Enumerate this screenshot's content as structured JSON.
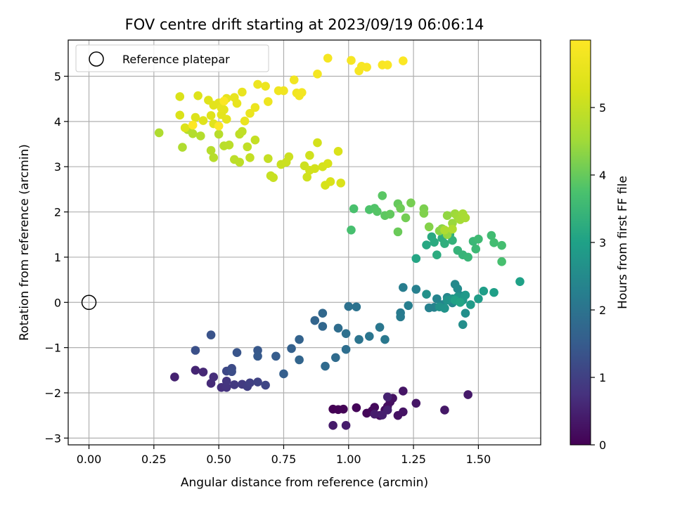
{
  "chart_data": {
    "type": "scatter",
    "title": "FOV centre drift starting at 2023/09/19 06:06:14",
    "xlabel": "Angular distance from reference (arcmin)",
    "ylabel": "Rotation from reference (arcmin)",
    "xlim": [
      -0.08,
      1.74
    ],
    "ylim": [
      -3.15,
      5.8
    ],
    "x_ticks": [
      "0.00",
      "0.25",
      "0.50",
      "0.75",
      "1.00",
      "1.25",
      "1.50"
    ],
    "y_ticks": [
      "−3",
      "−2",
      "−1",
      "0",
      "1",
      "2",
      "3",
      "4",
      "5"
    ],
    "grid": true,
    "legend": {
      "placement": "top-left",
      "entries": [
        "Reference platepar"
      ]
    },
    "reference_point": {
      "x": 0.0,
      "y": 0.0
    },
    "colorbar": {
      "label": "Hours from first FF file",
      "colormap": "viridis",
      "range": [
        0,
        6
      ],
      "ticks": [
        "0",
        "1",
        "2",
        "3",
        "4",
        "5"
      ]
    },
    "series": [
      {
        "hours_range": [
          0.0,
          0.5
        ],
        "points": [
          [
            0.94,
            -2.36
          ],
          [
            0.96,
            -2.37
          ],
          [
            0.98,
            -2.36
          ],
          [
            1.03,
            -2.33
          ],
          [
            1.07,
            -2.45
          ],
          [
            1.09,
            -2.4
          ],
          [
            1.1,
            -2.32
          ],
          [
            1.12,
            -2.5
          ],
          [
            1.14,
            -2.38
          ],
          [
            1.15,
            -2.3
          ],
          [
            1.16,
            -2.2
          ],
          [
            1.17,
            -2.12
          ],
          [
            1.19,
            -2.5
          ],
          [
            1.21,
            -2.42
          ],
          [
            1.21,
            -1.96
          ],
          [
            1.26,
            -2.23
          ],
          [
            1.37,
            -2.38
          ],
          [
            1.46,
            -2.04
          ],
          [
            0.94,
            -2.72
          ],
          [
            0.99,
            -2.72
          ],
          [
            1.1,
            -2.47
          ],
          [
            1.13,
            -2.49
          ],
          [
            1.15,
            -2.38
          ],
          [
            1.15,
            -2.09
          ]
        ]
      },
      {
        "hours_range": [
          0.5,
          1.7
        ],
        "points": [
          [
            0.33,
            -1.65
          ],
          [
            0.41,
            -1.5
          ],
          [
            0.44,
            -1.54
          ],
          [
            0.47,
            -1.79
          ],
          [
            0.48,
            -1.65
          ],
          [
            0.51,
            -1.88
          ],
          [
            0.53,
            -1.88
          ],
          [
            0.53,
            -1.74
          ],
          [
            0.56,
            -1.82
          ],
          [
            0.59,
            -1.81
          ],
          [
            0.61,
            -1.86
          ],
          [
            0.62,
            -1.78
          ],
          [
            0.65,
            -1.76
          ],
          [
            0.68,
            -1.83
          ],
          [
            0.53,
            -1.52
          ],
          [
            0.55,
            -1.46
          ],
          [
            0.55,
            -1.53
          ],
          [
            0.41,
            -1.06
          ],
          [
            0.47,
            -0.72
          ],
          [
            0.57,
            -1.11
          ],
          [
            0.65,
            -1.06
          ],
          [
            0.65,
            -1.19
          ],
          [
            0.72,
            -1.19
          ],
          [
            0.75,
            -1.58
          ],
          [
            0.78,
            -1.02
          ],
          [
            0.81,
            -0.82
          ],
          [
            0.81,
            -1.27
          ]
        ]
      },
      {
        "hours_range": [
          1.7,
          2.7
        ],
        "points": [
          [
            0.87,
            -0.4
          ],
          [
            0.9,
            -0.53
          ],
          [
            0.9,
            -0.24
          ],
          [
            0.91,
            -1.41
          ],
          [
            0.95,
            -1.22
          ],
          [
            0.96,
            -0.57
          ],
          [
            0.99,
            -1.04
          ],
          [
            0.99,
            -0.69
          ],
          [
            1.0,
            -0.09
          ],
          [
            1.03,
            -0.1
          ],
          [
            1.04,
            -0.82
          ],
          [
            1.08,
            -0.75
          ],
          [
            1.12,
            -0.55
          ],
          [
            1.14,
            -0.82
          ],
          [
            1.2,
            -0.23
          ],
          [
            1.2,
            -0.32
          ],
          [
            1.21,
            0.33
          ],
          [
            1.23,
            -0.07
          ],
          [
            1.26,
            0.29
          ],
          [
            1.31,
            -0.12
          ],
          [
            1.33,
            -0.11
          ],
          [
            1.34,
            0.08
          ],
          [
            1.36,
            -0.05
          ],
          [
            1.38,
            0.11
          ],
          [
            1.4,
            -0.01
          ],
          [
            1.41,
            0.4
          ],
          [
            1.42,
            0.3
          ],
          [
            1.43,
            0.15
          ],
          [
            1.44,
            -0.49
          ],
          [
            1.45,
            -0.24
          ],
          [
            1.3,
            0.18
          ],
          [
            1.35,
            -0.1
          ],
          [
            1.37,
            -0.13
          ]
        ]
      },
      {
        "hours_range": [
          2.7,
          3.7
        ],
        "points": [
          [
            1.38,
            0.05
          ],
          [
            1.4,
            0.08
          ],
          [
            1.42,
            0.12
          ],
          [
            1.44,
            0.05
          ],
          [
            1.45,
            0.16
          ],
          [
            1.47,
            -0.05
          ],
          [
            1.5,
            0.08
          ],
          [
            1.52,
            0.25
          ],
          [
            1.56,
            0.22
          ],
          [
            1.66,
            0.46
          ],
          [
            1.41,
            0.05
          ],
          [
            1.43,
            0.0
          ],
          [
            1.26,
            0.97
          ],
          [
            1.3,
            1.27
          ],
          [
            1.32,
            1.45
          ],
          [
            1.33,
            1.33
          ],
          [
            1.34,
            1.05
          ],
          [
            1.36,
            1.42
          ],
          [
            1.37,
            1.3
          ],
          [
            1.39,
            1.5
          ],
          [
            1.4,
            1.37
          ],
          [
            1.42,
            1.15
          ],
          [
            1.44,
            1.05
          ],
          [
            1.46,
            1.0
          ],
          [
            1.48,
            1.35
          ],
          [
            1.49,
            1.18
          ],
          [
            1.5,
            1.4
          ],
          [
            1.55,
            1.48
          ],
          [
            1.56,
            1.32
          ],
          [
            1.59,
            1.26
          ],
          [
            1.59,
            0.9
          ]
        ]
      },
      {
        "hours_range": [
          3.7,
          4.7
        ],
        "points": [
          [
            1.01,
            1.6
          ],
          [
            1.02,
            2.07
          ],
          [
            1.08,
            2.05
          ],
          [
            1.1,
            2.08
          ],
          [
            1.11,
            2.01
          ],
          [
            1.13,
            2.36
          ],
          [
            1.14,
            1.92
          ],
          [
            1.16,
            1.95
          ],
          [
            1.19,
            2.18
          ],
          [
            1.19,
            1.56
          ],
          [
            1.2,
            2.08
          ],
          [
            1.22,
            1.87
          ],
          [
            1.24,
            2.2
          ],
          [
            1.29,
            2.07
          ],
          [
            1.29,
            1.97
          ],
          [
            1.31,
            1.67
          ],
          [
            1.35,
            1.58
          ],
          [
            1.36,
            1.63
          ],
          [
            1.38,
            1.92
          ],
          [
            1.38,
            1.5
          ],
          [
            1.4,
            1.75
          ],
          [
            1.41,
            1.96
          ],
          [
            1.42,
            1.9
          ],
          [
            1.43,
            1.83
          ],
          [
            1.44,
            1.96
          ],
          [
            1.45,
            1.87
          ],
          [
            1.37,
            1.6
          ],
          [
            1.4,
            1.62
          ]
        ]
      },
      {
        "hours_range": [
          4.7,
          5.3
        ],
        "points": [
          [
            0.27,
            3.75
          ],
          [
            0.36,
            3.43
          ],
          [
            0.38,
            3.82
          ],
          [
            0.4,
            3.73
          ],
          [
            0.43,
            3.68
          ],
          [
            0.47,
            3.36
          ],
          [
            0.48,
            3.2
          ],
          [
            0.5,
            3.72
          ],
          [
            0.52,
            3.46
          ],
          [
            0.54,
            3.48
          ],
          [
            0.56,
            3.16
          ],
          [
            0.58,
            3.1
          ],
          [
            0.58,
            3.72
          ],
          [
            0.59,
            3.78
          ],
          [
            0.61,
            3.44
          ],
          [
            0.62,
            3.2
          ],
          [
            0.64,
            3.59
          ],
          [
            0.69,
            3.18
          ],
          [
            0.7,
            2.8
          ],
          [
            0.71,
            2.76
          ],
          [
            0.74,
            3.05
          ],
          [
            0.76,
            3.1
          ],
          [
            0.77,
            3.22
          ],
          [
            0.83,
            3.02
          ],
          [
            0.84,
            2.77
          ],
          [
            0.85,
            3.25
          ],
          [
            0.85,
            2.92
          ],
          [
            0.87,
            2.96
          ],
          [
            0.88,
            3.53
          ],
          [
            0.9,
            3.0
          ],
          [
            0.91,
            2.59
          ],
          [
            0.92,
            3.07
          ],
          [
            0.93,
            2.67
          ],
          [
            0.96,
            3.34
          ],
          [
            0.97,
            2.64
          ]
        ]
      },
      {
        "hours_range": [
          5.3,
          6.0
        ],
        "points": [
          [
            0.35,
            4.55
          ],
          [
            0.35,
            4.14
          ],
          [
            0.37,
            3.86
          ],
          [
            0.41,
            4.09
          ],
          [
            0.42,
            4.57
          ],
          [
            0.44,
            4.02
          ],
          [
            0.46,
            4.47
          ],
          [
            0.47,
            4.13
          ],
          [
            0.48,
            3.95
          ],
          [
            0.48,
            4.36
          ],
          [
            0.5,
            4.41
          ],
          [
            0.51,
            4.15
          ],
          [
            0.52,
            4.26
          ],
          [
            0.53,
            4.05
          ],
          [
            0.51,
            4.3
          ],
          [
            0.53,
            4.51
          ],
          [
            0.56,
            4.53
          ],
          [
            0.57,
            4.4
          ],
          [
            0.59,
            4.65
          ],
          [
            0.6,
            4.01
          ],
          [
            0.62,
            4.18
          ],
          [
            0.64,
            4.31
          ],
          [
            0.65,
            4.82
          ],
          [
            0.68,
            4.78
          ],
          [
            0.69,
            4.44
          ],
          [
            0.73,
            4.68
          ],
          [
            0.75,
            4.68
          ],
          [
            0.79,
            4.92
          ],
          [
            0.8,
            4.63
          ],
          [
            0.81,
            4.57
          ],
          [
            0.82,
            4.64
          ],
          [
            0.88,
            5.05
          ],
          [
            0.92,
            5.4
          ],
          [
            1.01,
            5.35
          ],
          [
            1.04,
            5.12
          ],
          [
            1.05,
            5.22
          ],
          [
            1.07,
            5.2
          ],
          [
            1.13,
            5.25
          ],
          [
            1.15,
            5.25
          ],
          [
            1.21,
            5.34
          ],
          [
            0.52,
            4.45
          ],
          [
            0.5,
            3.9
          ],
          [
            0.4,
            3.92
          ]
        ]
      }
    ]
  }
}
